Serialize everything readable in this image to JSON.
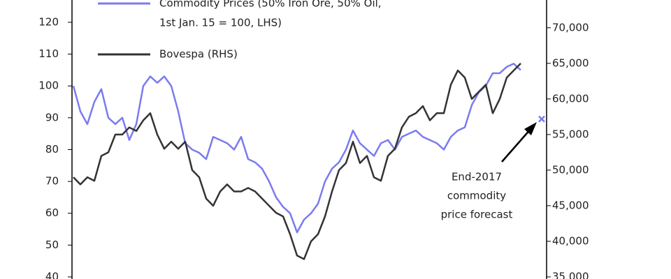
{
  "chart_data": {
    "type": "line",
    "legend_lines": [
      "Commodity Prices (50% Iron Ore, 50% Oil,",
      "1st Jan. 15 = 100, LHS)"
    ],
    "series": [
      {
        "name": "Commodity Prices",
        "color": "#7b7bf0",
        "axis": "y",
        "values": [
          100,
          92,
          88,
          95,
          99,
          90,
          88,
          90,
          83,
          88,
          100,
          103,
          101,
          103,
          100,
          92,
          82,
          80,
          79,
          77,
          84,
          83,
          82,
          80,
          84,
          77,
          76,
          74,
          70,
          65,
          62,
          60,
          54,
          58,
          60,
          63,
          70,
          74,
          76,
          80,
          86,
          82,
          80,
          78,
          82,
          83,
          80,
          84,
          85,
          86,
          84,
          83,
          82,
          80,
          84,
          86,
          87,
          94,
          98,
          100,
          104,
          104,
          106,
          107,
          105
        ]
      },
      {
        "name": "Bovespa (RHS)",
        "color": "#333333",
        "axis": "y2",
        "values": [
          49000,
          48000,
          49000,
          48500,
          52000,
          52500,
          55000,
          55000,
          56000,
          55500,
          57000,
          58000,
          55000,
          53000,
          54000,
          53000,
          54000,
          50000,
          49000,
          46000,
          45000,
          47000,
          48000,
          47000,
          47000,
          47500,
          47000,
          46000,
          45000,
          44000,
          43500,
          41000,
          38000,
          37500,
          40000,
          41000,
          43500,
          47000,
          50000,
          51000,
          54000,
          51000,
          52000,
          49000,
          48500,
          52000,
          53000,
          56000,
          57500,
          58000,
          59000,
          57000,
          58000,
          58000,
          62000,
          64000,
          63000,
          60000,
          61000,
          62000,
          58000,
          60000,
          63000,
          64000,
          65000
        ]
      }
    ],
    "forecast": {
      "value": 89.6,
      "color": "#7b7bf0",
      "label": [
        "End-2017",
        "commodity",
        "price forecast"
      ]
    },
    "ylim": [
      40,
      127
    ],
    "yticks": [
      40,
      50,
      60,
      70,
      80,
      90,
      100,
      110,
      120
    ],
    "y2lim": [
      35000,
      73900
    ],
    "y2ticks": [
      {
        "value": 35000,
        "label": "35,000"
      },
      {
        "value": 40000,
        "label": "40,000"
      },
      {
        "value": 45000,
        "label": "45,000"
      },
      {
        "value": 50000,
        "label": "50,000"
      },
      {
        "value": 55000,
        "label": "55,000"
      },
      {
        "value": 60000,
        "label": "60,000"
      },
      {
        "value": 65000,
        "label": "65,000"
      },
      {
        "value": 70000,
        "label": "70,000"
      }
    ]
  }
}
